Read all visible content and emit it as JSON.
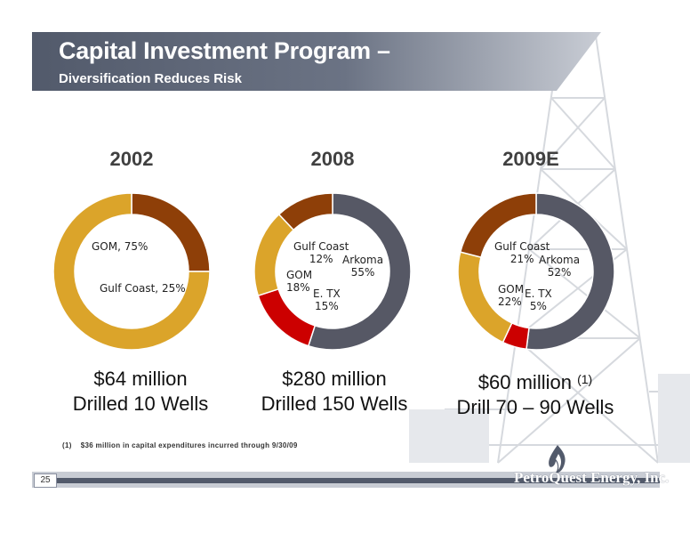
{
  "header": {
    "title": "Capital Investment Program –",
    "subtitle": "Diversification Reduces Risk"
  },
  "colors": {
    "title_band": "#525a6b",
    "gom": "#dba42a",
    "gulf_coast": "#8e3f08",
    "arkoma": "#565865",
    "e_tx": "#cc0000"
  },
  "chart_data": [
    {
      "type": "pie",
      "title": "2002",
      "slices": [
        {
          "name": "Gulf Coast",
          "value": 25,
          "label": "Gulf Coast, 25%",
          "color": "#8e3f08"
        },
        {
          "name": "GOM",
          "value": 75,
          "label": "GOM, 75%",
          "color": "#dba42a"
        }
      ],
      "summary_line1": "$64 million",
      "summary_line2": "Drilled 10 Wells",
      "footnote_ref": ""
    },
    {
      "type": "pie",
      "title": "2008",
      "slices": [
        {
          "name": "Arkoma",
          "value": 55,
          "label": "Arkoma\n55%",
          "color": "#565865"
        },
        {
          "name": "E. TX",
          "value": 15,
          "label": "E. TX\n15%",
          "color": "#cc0000"
        },
        {
          "name": "GOM",
          "value": 18,
          "label": "GOM\n18%",
          "color": "#dba42a"
        },
        {
          "name": "Gulf Coast",
          "value": 12,
          "label": "Gulf Coast\n12%",
          "color": "#8e3f08"
        }
      ],
      "summary_line1": "$280 million",
      "summary_line2": "Drilled 150 Wells",
      "footnote_ref": ""
    },
    {
      "type": "pie",
      "title": "2009E",
      "slices": [
        {
          "name": "Arkoma",
          "value": 52,
          "label": "Arkoma\n52%",
          "color": "#565865"
        },
        {
          "name": "E. TX",
          "value": 5,
          "label": "E. TX\n5%",
          "color": "#cc0000"
        },
        {
          "name": "GOM",
          "value": 22,
          "label": "GOM\n22%",
          "color": "#dba42a"
        },
        {
          "name": "Gulf Coast",
          "value": 21,
          "label": "Gulf Coast\n21%",
          "color": "#8e3f08"
        }
      ],
      "summary_line1": "$60 million",
      "summary_line2": "Drill 70 – 90 Wells",
      "footnote_ref": "(1)"
    }
  ],
  "footnote": "(1)    $36 million in capital expenditures incurred through 9/30/09",
  "footer": {
    "page_number": "25",
    "logo": "PetroQuest Energy, Inc."
  }
}
